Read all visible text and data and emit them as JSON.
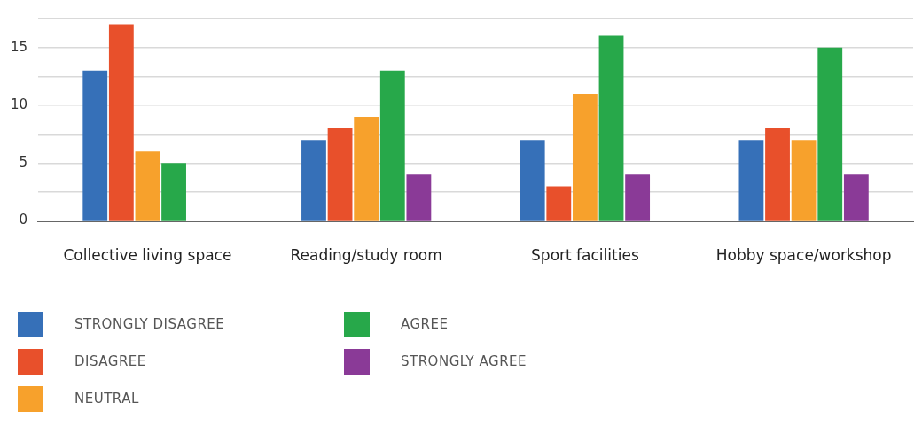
{
  "chart_data": {
    "type": "bar",
    "categories": [
      "Collective living space",
      "Reading/study room",
      "Sport facilities",
      "Hobby space/workshop"
    ],
    "series": [
      {
        "name": "STRONGLY DISAGREE",
        "color": "#3670b8",
        "values": [
          13,
          7,
          7,
          7
        ]
      },
      {
        "name": "DISAGREE",
        "color": "#e8502b",
        "values": [
          17,
          8,
          3,
          8
        ]
      },
      {
        "name": "NEUTRAL",
        "color": "#f7a12c",
        "values": [
          6,
          9,
          11,
          7
        ]
      },
      {
        "name": "AGREE",
        "color": "#27a84a",
        "values": [
          5,
          13,
          16,
          15
        ]
      },
      {
        "name": "STRONGLY AGREE",
        "color": "#8a3a97",
        "values": [
          0,
          4,
          4,
          4
        ]
      }
    ],
    "ylim": [
      0,
      17.5
    ],
    "yticks": [
      0,
      {
        "value": 2.5,
        "label": null
      },
      5,
      {
        "value": 7.5,
        "label": null
      },
      10,
      {
        "value": 12.5,
        "label": null
      },
      15,
      {
        "value": 17.5,
        "label": null
      }
    ],
    "grid": "y",
    "legend": "bottom"
  }
}
